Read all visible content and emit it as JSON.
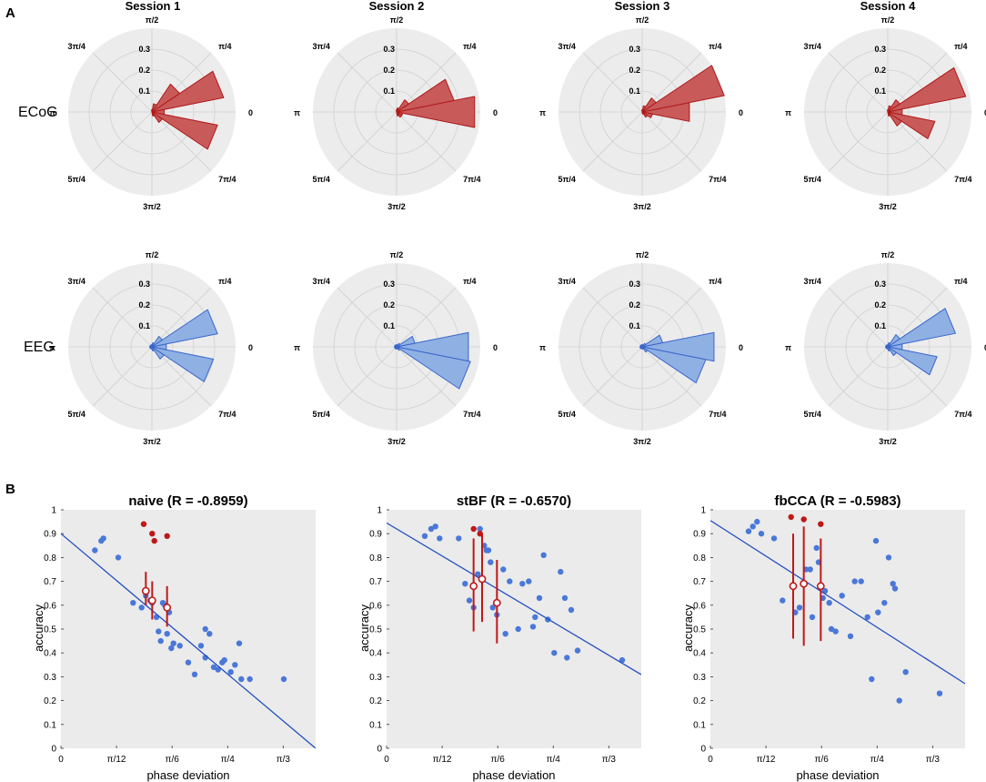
{
  "panel_labels": {
    "a": "A",
    "b": "B"
  },
  "colors": {
    "ecog_fill": "#c85a5a",
    "ecog_edge": "#b01818",
    "eeg_fill": "#8fb0e3",
    "eeg_edge": "#3a66cc",
    "scatter_dot": "#4a78d8",
    "fit_line": "#2450c0",
    "red_dot": "#c01818",
    "axes_bg": "#ebebeb",
    "polar_bg": "#ececec",
    "grid": "#d0d0d0"
  },
  "chart_data": [
    {
      "type": "polar-histogram",
      "panel": "A",
      "sessions": [
        "Session 1",
        "Session 2",
        "Session 3",
        "Session 4"
      ],
      "rows": [
        "ECoG",
        "EEG"
      ],
      "r_ticks": [
        "0.1",
        "0.2",
        "0.3"
      ],
      "r_max": 0.4,
      "angle_labels": [
        "0",
        "π/4",
        "π/2",
        "3π/4",
        "π",
        "5π/4",
        "3π/2",
        "7π/4"
      ],
      "bin_width_rad": 0.3927,
      "bin_centers_rad": [
        0,
        0.3927,
        0.7854,
        1.1781,
        1.5708,
        1.9635,
        2.3562,
        2.7489,
        3.1416,
        3.5343,
        3.927,
        4.3197,
        4.7124,
        5.1051,
        5.4978,
        5.8905
      ],
      "values": {
        "ECoG": [
          [
            0.06,
            0.35,
            0.16,
            0.04,
            0.01,
            0,
            0,
            0,
            0,
            0,
            0,
            0,
            0,
            0.02,
            0.06,
            0.32
          ],
          [
            0.38,
            0.28,
            0.07,
            0.02,
            0.01,
            0,
            0,
            0,
            0,
            0,
            0,
            0,
            0,
            0.02,
            0.03,
            0.03
          ],
          [
            0.23,
            0.4,
            0.08,
            0.03,
            0.01,
            0,
            0,
            0,
            0,
            0,
            0,
            0,
            0,
            0.01,
            0.03,
            0.05
          ],
          [
            0.07,
            0.38,
            0.07,
            0.03,
            0.01,
            0,
            0,
            0,
            0,
            0,
            0,
            0,
            0,
            0.02,
            0.08,
            0.23
          ]
        ],
        "EEG": [
          [
            0.07,
            0.32,
            0.06,
            0.02,
            0.01,
            0.01,
            0.01,
            0.01,
            0.01,
            0.01,
            0.01,
            0.01,
            0.01,
            0.02,
            0.07,
            0.3
          ],
          [
            0.35,
            0.09,
            0.02,
            0.01,
            0.01,
            0.01,
            0.01,
            0.01,
            0.01,
            0.01,
            0.01,
            0.01,
            0.01,
            0.01,
            0.02,
            0.36
          ],
          [
            0.35,
            0.1,
            0.02,
            0.01,
            0.01,
            0.01,
            0.01,
            0.01,
            0.01,
            0.01,
            0.01,
            0.01,
            0.01,
            0.01,
            0.03,
            0.31
          ],
          [
            0.07,
            0.33,
            0.07,
            0.02,
            0.01,
            0.01,
            0.01,
            0.01,
            0.01,
            0.01,
            0.01,
            0.01,
            0.01,
            0.02,
            0.05,
            0.24
          ]
        ]
      }
    },
    {
      "type": "scatter",
      "panel": "B",
      "title": "naive (R = -0.8959)",
      "xlabel": "phase deviation",
      "ylabel": "accuracy",
      "xlim": [
        0,
        1.2
      ],
      "ylim": [
        0,
        1
      ],
      "xticks": [
        0,
        0.2618,
        0.5236,
        0.7854,
        1.0472
      ],
      "xtick_labels": [
        "0",
        "π/12",
        "π/6",
        "π/4",
        "π/3"
      ],
      "yticks": [
        0,
        0.1,
        0.2,
        0.3,
        0.4,
        0.5,
        0.6,
        0.7,
        0.8,
        0.9,
        1
      ],
      "ytick_labels": [
        "0",
        "0.1",
        "0.2",
        "0.3",
        "0.4",
        "0.5",
        "0.6",
        "0.7",
        "0.8",
        "0.9",
        "1"
      ],
      "fit": {
        "intercept": 0.9,
        "slope": -0.75
      },
      "points": [
        [
          0.16,
          0.83
        ],
        [
          0.19,
          0.87
        ],
        [
          0.2,
          0.88
        ],
        [
          0.27,
          0.8
        ],
        [
          0.34,
          0.61
        ],
        [
          0.38,
          0.59
        ],
        [
          0.4,
          0.64
        ],
        [
          0.42,
          0.62
        ],
        [
          0.43,
          0.61
        ],
        [
          0.45,
          0.55
        ],
        [
          0.46,
          0.49
        ],
        [
          0.47,
          0.45
        ],
        [
          0.48,
          0.61
        ],
        [
          0.49,
          0.6
        ],
        [
          0.5,
          0.48
        ],
        [
          0.51,
          0.57
        ],
        [
          0.52,
          0.42
        ],
        [
          0.53,
          0.44
        ],
        [
          0.56,
          0.43
        ],
        [
          0.6,
          0.36
        ],
        [
          0.63,
          0.31
        ],
        [
          0.66,
          0.43
        ],
        [
          0.68,
          0.5
        ],
        [
          0.68,
          0.38
        ],
        [
          0.7,
          0.48
        ],
        [
          0.72,
          0.34
        ],
        [
          0.74,
          0.33
        ],
        [
          0.76,
          0.36
        ],
        [
          0.77,
          0.37
        ],
        [
          0.8,
          0.32
        ],
        [
          0.82,
          0.35
        ],
        [
          0.84,
          0.44
        ],
        [
          0.85,
          0.29
        ],
        [
          0.89,
          0.29
        ],
        [
          1.05,
          0.29
        ]
      ],
      "red_points": [
        [
          0.39,
          0.94
        ],
        [
          0.43,
          0.9
        ],
        [
          0.44,
          0.87
        ],
        [
          0.5,
          0.89
        ]
      ],
      "error_points": [
        {
          "x": 0.4,
          "y": 0.66,
          "low": 0.6,
          "high": 0.74
        },
        {
          "x": 0.43,
          "y": 0.62,
          "low": 0.54,
          "high": 0.7
        },
        {
          "x": 0.5,
          "y": 0.59,
          "low": 0.51,
          "high": 0.68
        }
      ]
    },
    {
      "type": "scatter",
      "panel": "B",
      "title": "stBF (R = -0.6570)",
      "xlabel": "phase deviation",
      "ylabel": "accuracy",
      "xlim": [
        0,
        1.2
      ],
      "ylim": [
        0,
        1
      ],
      "xticks": [
        0,
        0.2618,
        0.5236,
        0.7854,
        1.0472
      ],
      "xtick_labels": [
        "0",
        "π/12",
        "π/6",
        "π/4",
        "π/3"
      ],
      "yticks": [
        0,
        0.1,
        0.2,
        0.3,
        0.4,
        0.5,
        0.6,
        0.7,
        0.8,
        0.9,
        1
      ],
      "ytick_labels": [
        "0",
        "0.1",
        "0.2",
        "0.3",
        "0.4",
        "0.5",
        "0.6",
        "0.7",
        "0.8",
        "0.9",
        "1"
      ],
      "fit": {
        "intercept": 0.945,
        "slope": -0.53
      },
      "points": [
        [
          0.18,
          0.89
        ],
        [
          0.21,
          0.92
        ],
        [
          0.23,
          0.93
        ],
        [
          0.25,
          0.88
        ],
        [
          0.34,
          0.88
        ],
        [
          0.37,
          0.69
        ],
        [
          0.39,
          0.62
        ],
        [
          0.41,
          0.59
        ],
        [
          0.43,
          0.73
        ],
        [
          0.44,
          0.92
        ],
        [
          0.46,
          0.85
        ],
        [
          0.47,
          0.83
        ],
        [
          0.48,
          0.83
        ],
        [
          0.49,
          0.78
        ],
        [
          0.5,
          0.59
        ],
        [
          0.52,
          0.56
        ],
        [
          0.55,
          0.75
        ],
        [
          0.56,
          0.48
        ],
        [
          0.58,
          0.7
        ],
        [
          0.62,
          0.5
        ],
        [
          0.64,
          0.69
        ],
        [
          0.67,
          0.7
        ],
        [
          0.69,
          0.51
        ],
        [
          0.7,
          0.55
        ],
        [
          0.72,
          0.63
        ],
        [
          0.74,
          0.81
        ],
        [
          0.76,
          0.54
        ],
        [
          0.79,
          0.4
        ],
        [
          0.82,
          0.74
        ],
        [
          0.84,
          0.63
        ],
        [
          0.85,
          0.38
        ],
        [
          0.87,
          0.58
        ],
        [
          0.9,
          0.41
        ],
        [
          1.11,
          0.37
        ]
      ],
      "red_points": [
        [
          0.41,
          0.92
        ],
        [
          0.44,
          0.9
        ]
      ],
      "error_points": [
        {
          "x": 0.41,
          "y": 0.68,
          "low": 0.49,
          "high": 0.88
        },
        {
          "x": 0.45,
          "y": 0.71,
          "low": 0.53,
          "high": 0.9
        },
        {
          "x": 0.52,
          "y": 0.61,
          "low": 0.44,
          "high": 0.79
        }
      ]
    },
    {
      "type": "scatter",
      "panel": "B",
      "title": "fbCCA (R = -0.5983)",
      "xlabel": "phase deviation",
      "ylabel": "accuracy",
      "xlim": [
        0,
        1.2
      ],
      "ylim": [
        0,
        1
      ],
      "xticks": [
        0,
        0.2618,
        0.5236,
        0.7854,
        1.0472
      ],
      "xtick_labels": [
        "0",
        "π/12",
        "π/6",
        "π/4",
        "π/3"
      ],
      "yticks": [
        0,
        0.1,
        0.2,
        0.3,
        0.4,
        0.5,
        0.6,
        0.7,
        0.8,
        0.9,
        1
      ],
      "ytick_labels": [
        "0",
        "0.1",
        "0.2",
        "0.3",
        "0.4",
        "0.5",
        "0.6",
        "0.7",
        "0.8",
        "0.9",
        "1"
      ],
      "fit": {
        "intercept": 0.955,
        "slope": -0.57
      },
      "points": [
        [
          0.18,
          0.91
        ],
        [
          0.2,
          0.93
        ],
        [
          0.22,
          0.95
        ],
        [
          0.24,
          0.9
        ],
        [
          0.3,
          0.88
        ],
        [
          0.34,
          0.62
        ],
        [
          0.4,
          0.57
        ],
        [
          0.42,
          0.59
        ],
        [
          0.45,
          0.75
        ],
        [
          0.47,
          0.75
        ],
        [
          0.48,
          0.55
        ],
        [
          0.5,
          0.84
        ],
        [
          0.51,
          0.78
        ],
        [
          0.53,
          0.63
        ],
        [
          0.54,
          0.66
        ],
        [
          0.56,
          0.61
        ],
        [
          0.57,
          0.5
        ],
        [
          0.59,
          0.49
        ],
        [
          0.62,
          0.64
        ],
        [
          0.66,
          0.47
        ],
        [
          0.68,
          0.7
        ],
        [
          0.71,
          0.7
        ],
        [
          0.74,
          0.55
        ],
        [
          0.76,
          0.29
        ],
        [
          0.78,
          0.87
        ],
        [
          0.79,
          0.57
        ],
        [
          0.82,
          0.61
        ],
        [
          0.84,
          0.8
        ],
        [
          0.86,
          0.69
        ],
        [
          0.87,
          0.67
        ],
        [
          0.89,
          0.2
        ],
        [
          0.92,
          0.32
        ],
        [
          1.08,
          0.23
        ]
      ],
      "red_points": [
        [
          0.38,
          0.97
        ],
        [
          0.44,
          0.96
        ],
        [
          0.52,
          0.94
        ]
      ],
      "error_points": [
        {
          "x": 0.39,
          "y": 0.68,
          "low": 0.46,
          "high": 0.9
        },
        {
          "x": 0.44,
          "y": 0.69,
          "low": 0.43,
          "high": 0.93
        },
        {
          "x": 0.52,
          "y": 0.68,
          "low": 0.45,
          "high": 0.88
        }
      ]
    }
  ]
}
